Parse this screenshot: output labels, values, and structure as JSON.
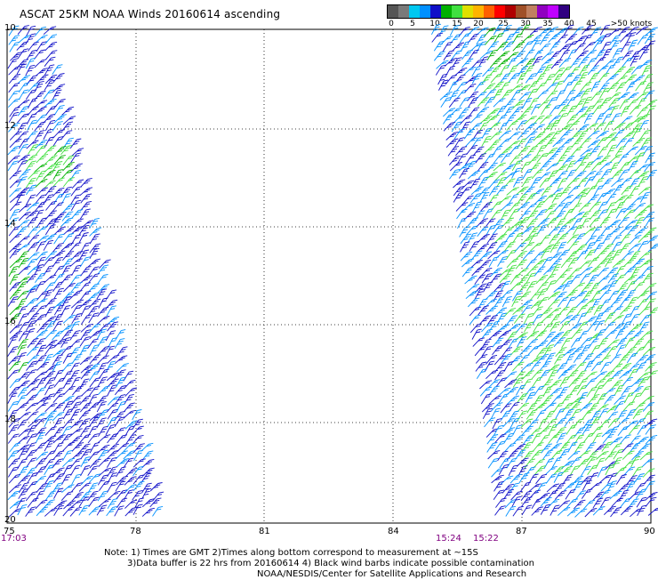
{
  "title": "ASCAT 25KM NOAA Winds 20160614 ascending",
  "legend": {
    "colors": [
      "#555555",
      "#7a7a7a",
      "#00c8f0",
      "#0090ff",
      "#1010c8",
      "#00b000",
      "#40e040",
      "#e0e000",
      "#ffb400",
      "#ff6000",
      "#ff0000",
      "#b00000",
      "#a05028",
      "#c08060",
      "#9000c0",
      "#c000ff",
      "#300080"
    ],
    "labels": [
      "0",
      "5",
      "10",
      "15",
      "20",
      "25",
      "30",
      "35",
      "40",
      "45",
      ">50 knots"
    ]
  },
  "axes": {
    "x_ticks": [
      "75",
      "78",
      "81",
      "84",
      "87",
      "90"
    ],
    "y_ticks": [
      "10",
      "12",
      "14",
      "16",
      "18",
      "20"
    ]
  },
  "times": {
    "left": "17:03",
    "mid1": "15:24",
    "mid2": "15:22"
  },
  "note": {
    "line1": "Note: 1) Times are GMT 2)Times along bottom correspond to measurement at ~15S",
    "line2": "3)Data buffer is 22 hrs from 20160614 4) Black wind barbs indicate possible contamination",
    "line3": "NOAA/NESDIS/Center for Satellite Applications and Research"
  },
  "wind_colors": {
    "dark_blue": "#1010c8",
    "mid_blue": "#0090ff",
    "light_blue": "#00c8f0",
    "green": "#00b000",
    "light_green": "#40e040"
  }
}
